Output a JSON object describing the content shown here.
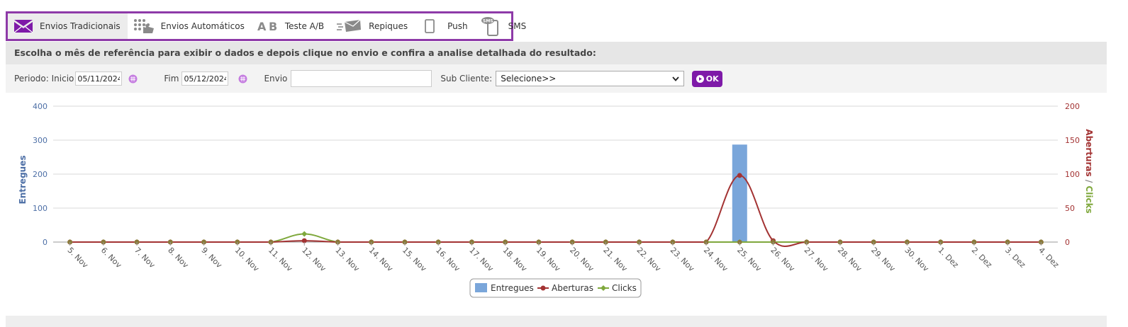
{
  "tabs": [
    {
      "label": "Envios Tradicionais",
      "icon": "envelope-icon",
      "active": true
    },
    {
      "label": "Envios Automáticos",
      "icon": "automation-icon",
      "active": false
    },
    {
      "label": "Teste A/B",
      "icon": "ab-test-icon",
      "active": false
    },
    {
      "label": "Repiques",
      "icon": "resend-icon",
      "active": false
    },
    {
      "label": "Push",
      "icon": "mobile-icon",
      "active": false
    },
    {
      "label": "SMS",
      "icon": "sms-icon",
      "active": false
    }
  ],
  "header": {
    "text": "Escolha o mês de referência para exibir o dados e depois clique no envio e confira a analise detalhada do resultado:"
  },
  "filters": {
    "periodo_label": "Periodo: Inicio",
    "inicio_value": "05/11/2024",
    "fim_label": "Fim",
    "fim_value": "05/12/2024",
    "envio_label": "Envio",
    "envio_value": "",
    "subcliente_label": "Sub Cliente:",
    "subcliente_value": "Selecione>>",
    "ok_label": "OK"
  },
  "colors": {
    "accent": "#7e1aa8",
    "entregues": "#7aa6da",
    "aberturas": "#a33333",
    "clicks": "#7fa83c",
    "axis_left": "#4d6fa6",
    "axis_right": "#a33333"
  },
  "chart_data": {
    "type": "bar",
    "categories": [
      "5. Nov",
      "6. Nov",
      "7. Nov",
      "8. Nov",
      "9. Nov",
      "10. Nov",
      "11. Nov",
      "12. Nov",
      "13. Nov",
      "14. Nov",
      "15. Nov",
      "16. Nov",
      "17. Nov",
      "18. Nov",
      "19. Nov",
      "20. Nov",
      "21. Nov",
      "22. Nov",
      "23. Nov",
      "24. Nov",
      "25. Nov",
      "26. Nov",
      "27. Nov",
      "28. Nov",
      "29. Nov",
      "30. Nov",
      "1. Dez",
      "2. Dez",
      "3. Dez",
      "4. Dez"
    ],
    "series": [
      {
        "name": "Entregues",
        "type": "bar",
        "axis": "left",
        "values": [
          0,
          0,
          0,
          0,
          0,
          0,
          0,
          0,
          0,
          0,
          0,
          0,
          0,
          0,
          0,
          0,
          0,
          0,
          0,
          0,
          288,
          0,
          0,
          0,
          0,
          0,
          0,
          0,
          0,
          0
        ]
      },
      {
        "name": "Aberturas",
        "type": "spline",
        "axis": "right",
        "values": [
          0,
          0,
          0,
          0,
          0,
          0,
          0,
          2,
          0,
          0,
          0,
          0,
          0,
          0,
          0,
          0,
          0,
          0,
          0,
          0,
          98,
          2,
          0,
          0,
          0,
          0,
          0,
          0,
          0,
          0
        ]
      },
      {
        "name": "Clicks",
        "type": "spline",
        "axis": "right",
        "values": [
          0,
          0,
          0,
          0,
          0,
          0,
          0,
          12,
          0,
          0,
          0,
          0,
          0,
          0,
          0,
          0,
          0,
          0,
          0,
          0,
          0,
          0,
          0,
          0,
          0,
          0,
          0,
          0,
          0,
          0
        ]
      }
    ],
    "ylabel_left": "Entregues",
    "ylabel_right_a": "Aberturas",
    "ylabel_right_sep": "/",
    "ylabel_right_b": "Clicks",
    "ylim_left": [
      0,
      400
    ],
    "yticks_left": [
      "0",
      "100",
      "200",
      "300",
      "400"
    ],
    "ylim_right": [
      0,
      200
    ],
    "yticks_right": [
      "0",
      "50",
      "100",
      "150",
      "200"
    ],
    "grid": true,
    "legend_position": "bottom-center"
  }
}
